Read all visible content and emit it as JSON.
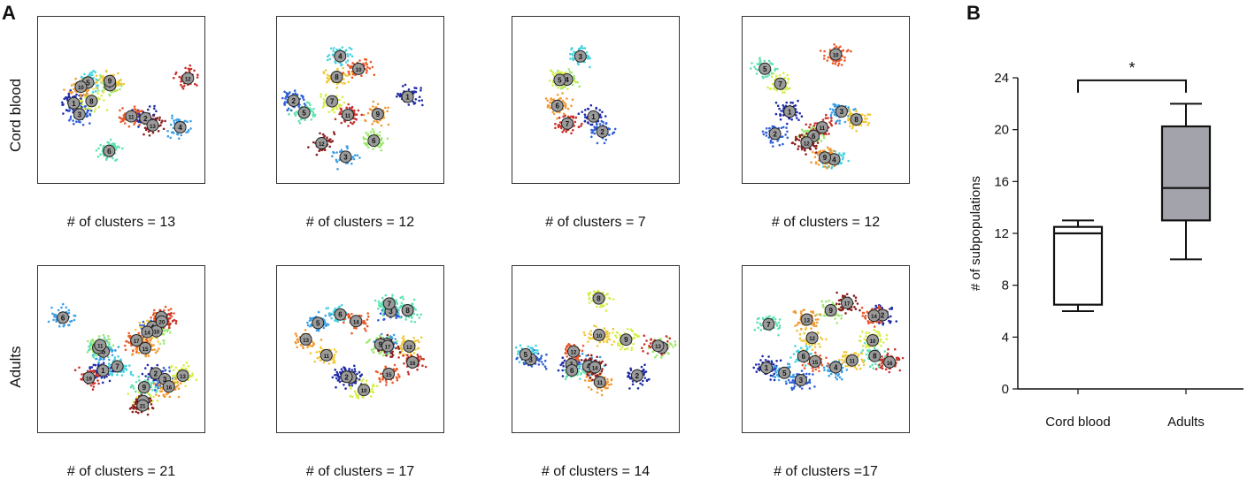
{
  "panel_a_label": "A",
  "panel_b_label": "B",
  "row_labels": [
    "Cord blood",
    "Adults"
  ],
  "colors": {
    "palette": [
      "#1f2aa8",
      "#2f5fd8",
      "#3aa0e8",
      "#45d3e0",
      "#5fe3b0",
      "#9ee870",
      "#d8ee4a",
      "#f2c838",
      "#f39a32",
      "#ec5a2a",
      "#c8322a",
      "#8c1e1e"
    ],
    "marker_fill": "#9a9a9a",
    "box_fill_adults": "#a3a3ab",
    "box_fill_cord": "#ffffff"
  },
  "scatter_panels": [
    {
      "row": 0,
      "caption": "# of clusters = 13",
      "clusters": 13
    },
    {
      "row": 0,
      "caption": "# of clusters =  12",
      "clusters": 12
    },
    {
      "row": 0,
      "caption": "# of clusters = 7",
      "clusters": 7
    },
    {
      "row": 0,
      "caption": "# of clusters = 12",
      "clusters": 12
    },
    {
      "row": 1,
      "caption": "# of clusters = 21",
      "clusters": 21
    },
    {
      "row": 1,
      "caption": "# of clusters = 17",
      "clusters": 17
    },
    {
      "row": 1,
      "caption": "# of clusters = 14",
      "clusters": 14
    },
    {
      "row": 1,
      "caption": "# of clusters =17",
      "clusters": 17
    }
  ],
  "chart_data": {
    "type": "box",
    "categories": [
      "Cord blood",
      "Adults"
    ],
    "ylabel": "# of subpopulations",
    "ylim": [
      0,
      24
    ],
    "yticks": [
      0,
      4,
      8,
      12,
      16,
      20,
      24
    ],
    "boxes": [
      {
        "name": "Cord blood",
        "min": 6,
        "q1": 6.5,
        "median": 12,
        "q3": 12.5,
        "max": 13
      },
      {
        "name": "Adults",
        "min": 10,
        "q1": 13,
        "median": 15.5,
        "q3": 20.25,
        "max": 22
      }
    ],
    "annotation": "*"
  }
}
